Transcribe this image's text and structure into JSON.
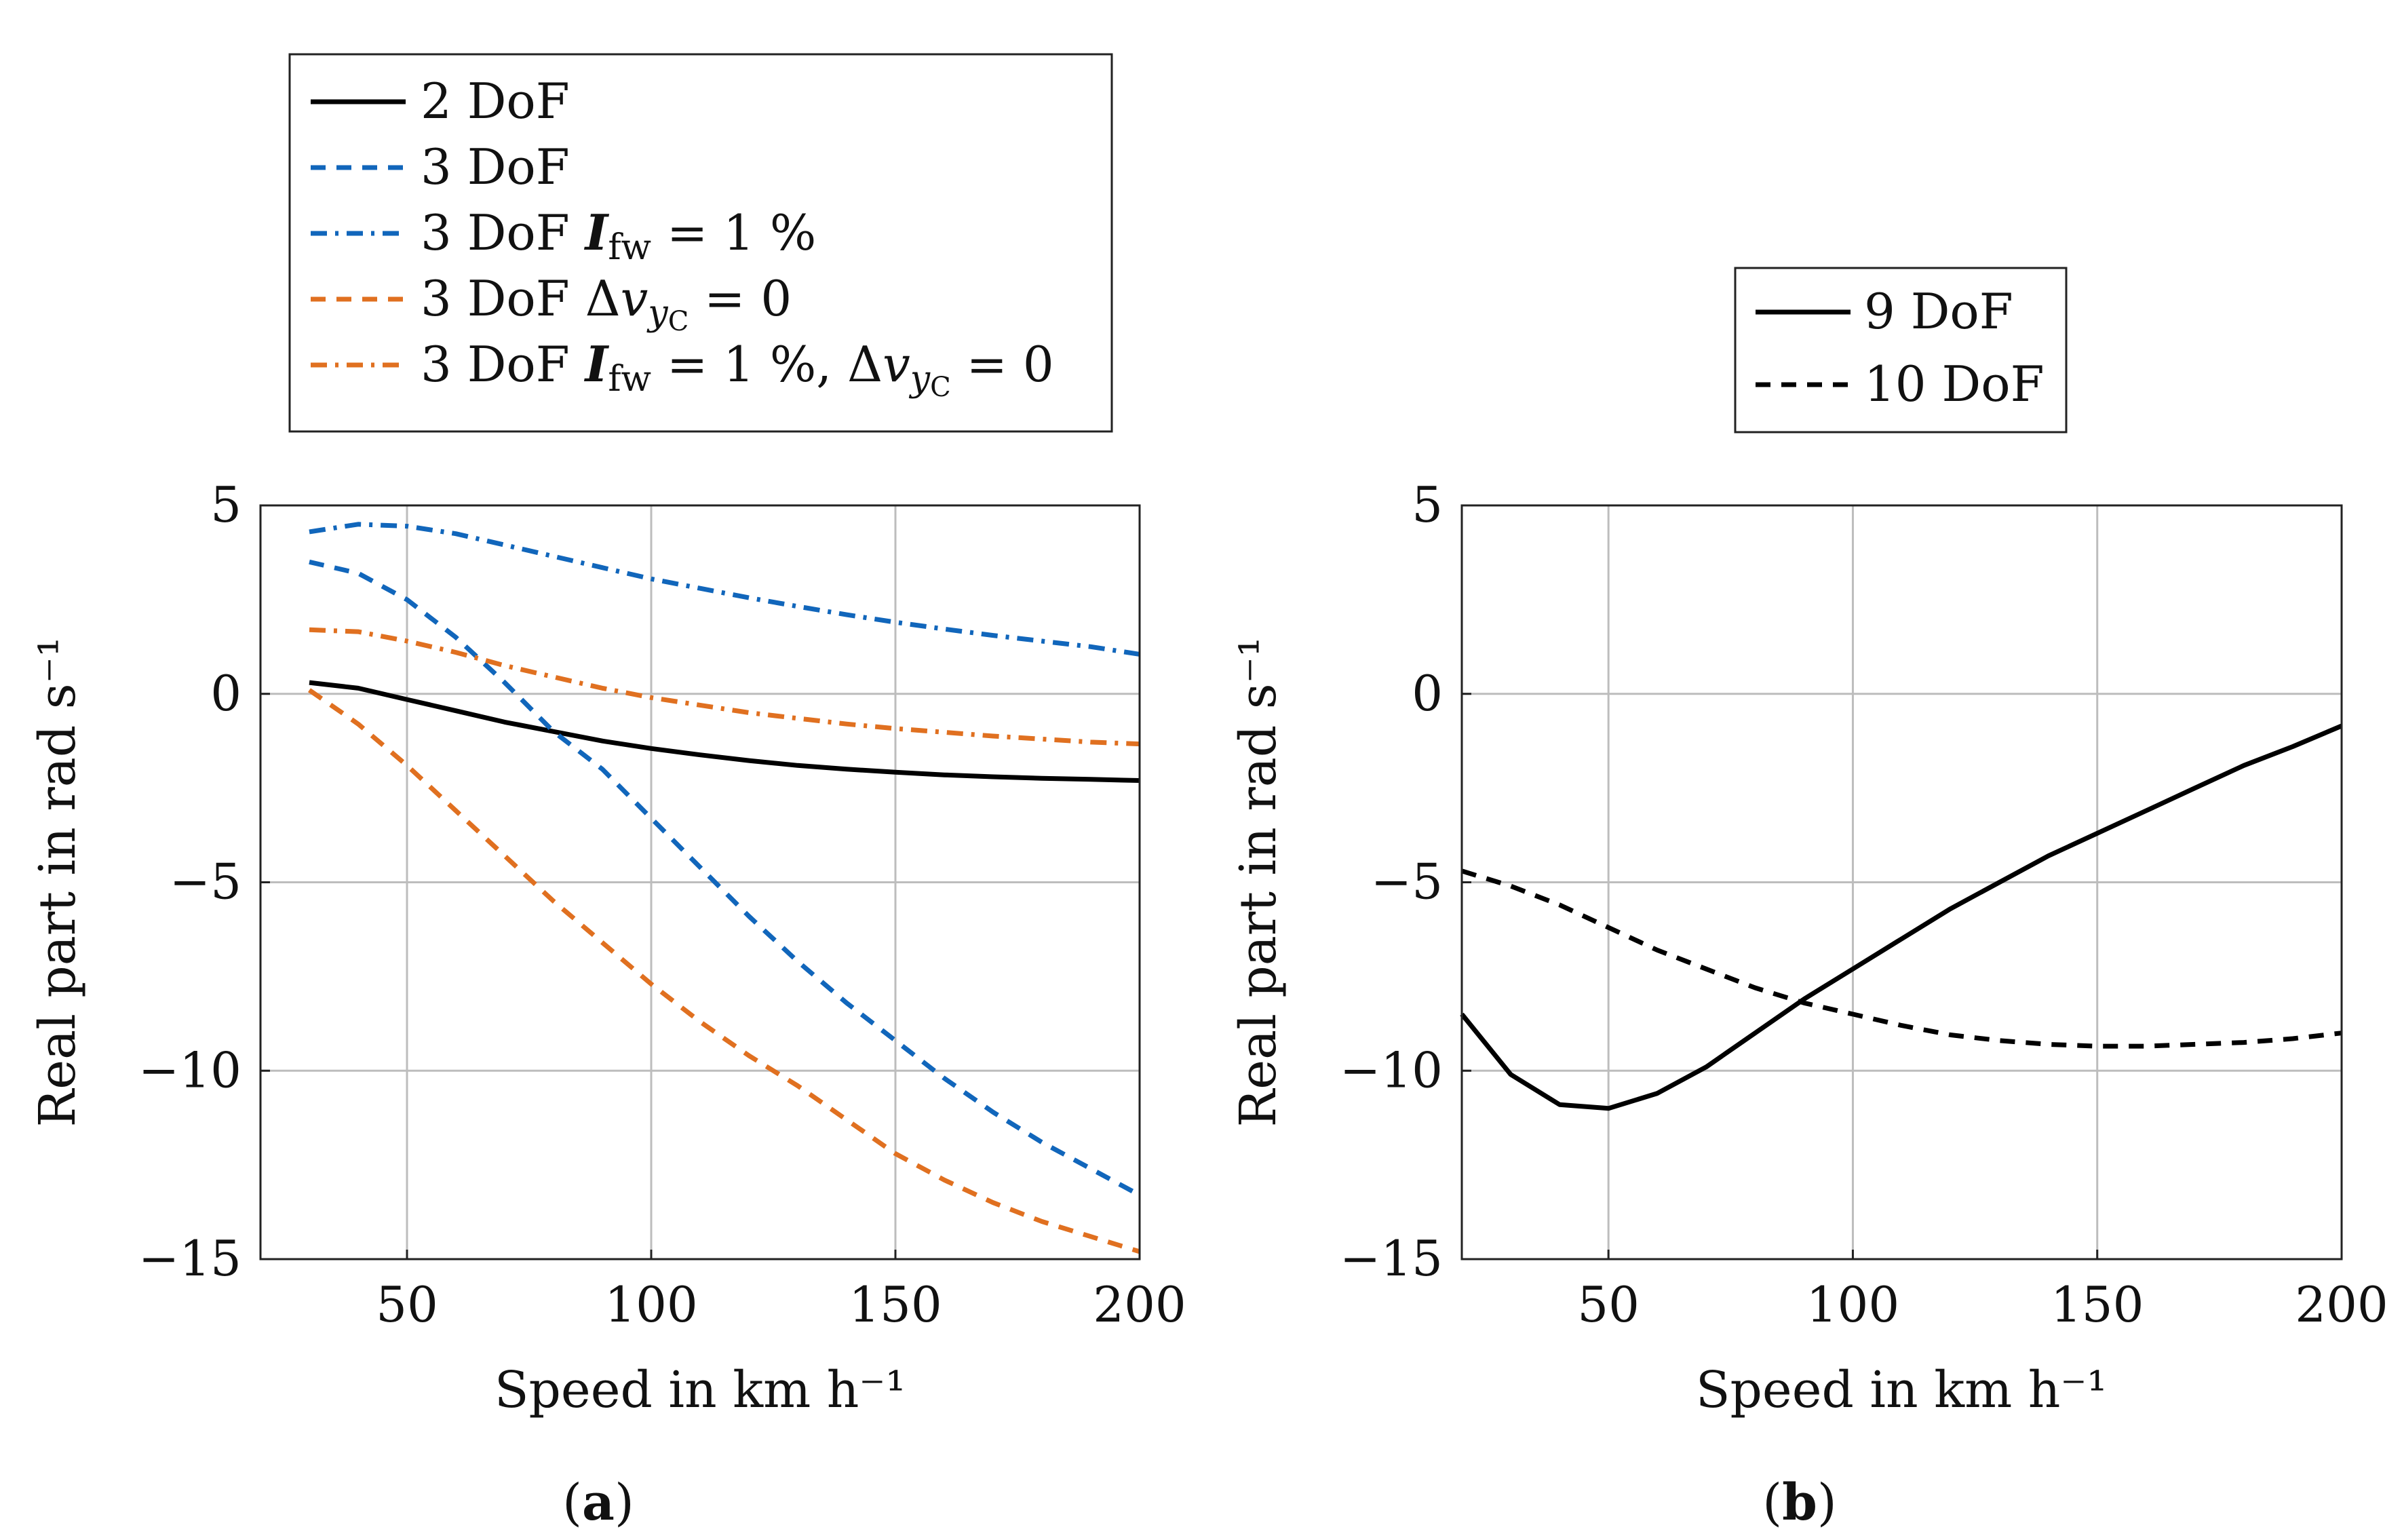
{
  "colors": {
    "black": "#000000",
    "blue": "#1166bb",
    "orange": "#e07020",
    "grid": "#bdbdbd"
  },
  "chart_data": [
    {
      "type": "line",
      "panel_label": "a",
      "xlabel": "Speed in km h⁻¹",
      "ylabel": "Real part in rad s⁻¹",
      "xlim": [
        20,
        200
      ],
      "ylim": [
        -15,
        5
      ],
      "xticks": [
        50,
        100,
        150,
        200
      ],
      "yticks": [
        5,
        0,
        -5,
        -10,
        -15
      ],
      "grid": true,
      "legend_position": "above",
      "series": [
        {
          "name": "2 DoF",
          "color": "#000000",
          "dash": "solid",
          "x": [
            30,
            40,
            50,
            60,
            70,
            80,
            90,
            100,
            110,
            120,
            130,
            140,
            150,
            160,
            170,
            180,
            190,
            200
          ],
          "y": [
            0.3,
            0.15,
            -0.15,
            -0.45,
            -0.75,
            -1.0,
            -1.25,
            -1.45,
            -1.62,
            -1.77,
            -1.9,
            -2.0,
            -2.08,
            -2.15,
            -2.2,
            -2.24,
            -2.27,
            -2.3
          ]
        },
        {
          "name": "3 DoF",
          "color": "#1166bb",
          "dash": "dashed",
          "x": [
            30,
            40,
            50,
            60,
            70,
            80,
            90,
            100,
            110,
            120,
            130,
            140,
            150,
            160,
            170,
            180,
            190,
            200
          ],
          "y": [
            3.5,
            3.2,
            2.5,
            1.5,
            0.3,
            -1.0,
            -2.0,
            -3.3,
            -4.6,
            -5.9,
            -7.1,
            -8.2,
            -9.2,
            -10.2,
            -11.1,
            -11.9,
            -12.6,
            -13.3
          ]
        },
        {
          "name": "3 DoF I_fw = 1 %",
          "color": "#1166bb",
          "dash": "dashdot",
          "x": [
            30,
            40,
            50,
            60,
            70,
            80,
            90,
            100,
            110,
            120,
            130,
            140,
            150,
            160,
            170,
            180,
            190,
            200
          ],
          "y": [
            4.3,
            4.5,
            4.45,
            4.25,
            3.95,
            3.65,
            3.35,
            3.05,
            2.8,
            2.55,
            2.32,
            2.1,
            1.9,
            1.72,
            1.55,
            1.4,
            1.25,
            1.05
          ]
        },
        {
          "name": "3 DoF Δv_yC = 0",
          "color": "#e07020",
          "dash": "dashed",
          "x": [
            30,
            40,
            50,
            60,
            70,
            80,
            90,
            100,
            110,
            120,
            130,
            140,
            150,
            160,
            170,
            180,
            190,
            200
          ],
          "y": [
            0.1,
            -0.8,
            -1.9,
            -3.1,
            -4.3,
            -5.5,
            -6.6,
            -7.7,
            -8.7,
            -9.6,
            -10.4,
            -11.3,
            -12.2,
            -12.9,
            -13.5,
            -14.0,
            -14.4,
            -14.8
          ]
        },
        {
          "name": "3 DoF I_fw = 1 %, Δv_yC = 0",
          "color": "#e07020",
          "dash": "dashdot",
          "x": [
            30,
            40,
            50,
            60,
            70,
            80,
            90,
            100,
            110,
            120,
            130,
            140,
            150,
            160,
            170,
            180,
            190,
            200
          ],
          "y": [
            1.7,
            1.65,
            1.4,
            1.1,
            0.75,
            0.45,
            0.15,
            -0.1,
            -0.3,
            -0.5,
            -0.65,
            -0.8,
            -0.92,
            -1.02,
            -1.12,
            -1.2,
            -1.28,
            -1.33
          ]
        }
      ]
    },
    {
      "type": "line",
      "panel_label": "b",
      "xlabel": "Speed in km h⁻¹",
      "ylabel": "Real part in rad s⁻¹",
      "xlim": [
        20,
        200
      ],
      "ylim": [
        -15,
        5
      ],
      "xticks": [
        50,
        100,
        150,
        200
      ],
      "yticks": [
        5,
        0,
        -5,
        -10,
        -15
      ],
      "grid": true,
      "legend_position": "above",
      "series": [
        {
          "name": "9 DoF",
          "color": "#000000",
          "dash": "solid",
          "x": [
            20,
            30,
            40,
            50,
            60,
            70,
            80,
            90,
            100,
            110,
            120,
            130,
            140,
            150,
            160,
            170,
            180,
            190,
            200
          ],
          "y": [
            -8.5,
            -10.1,
            -10.9,
            -11.0,
            -10.6,
            -9.9,
            -9.0,
            -8.1,
            -7.3,
            -6.5,
            -5.7,
            -5.0,
            -4.3,
            -3.7,
            -3.1,
            -2.5,
            -1.9,
            -1.4,
            -0.85
          ]
        },
        {
          "name": "10 DoF",
          "color": "#000000",
          "dash": "dashed",
          "x": [
            20,
            30,
            40,
            50,
            60,
            70,
            80,
            90,
            100,
            110,
            120,
            130,
            140,
            150,
            160,
            170,
            180,
            190,
            200
          ],
          "y": [
            -4.7,
            -5.1,
            -5.6,
            -6.2,
            -6.8,
            -7.3,
            -7.8,
            -8.2,
            -8.5,
            -8.8,
            -9.05,
            -9.2,
            -9.3,
            -9.35,
            -9.35,
            -9.3,
            -9.25,
            -9.15,
            -9.0
          ]
        }
      ]
    }
  ]
}
